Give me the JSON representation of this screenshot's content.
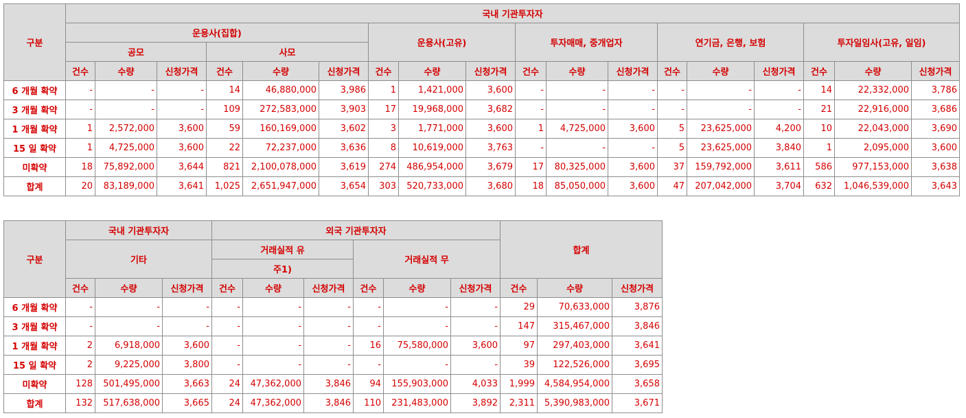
{
  "tables": [
    {
      "headers": [
        "구분",
        "국내 기관투자자",
        "운용사(집합)",
        "운용사(고유)",
        "투자매매, 중개업자",
        "연기금, 은행, 보험",
        "투자일임사(고유, 일임)",
        "공모",
        "사모"
      ],
      "columns": [
        "건수",
        "수량",
        "신청가격",
        "건수",
        "수량",
        "신청가격",
        "건수",
        "수량",
        "신청가격",
        "건수",
        "수량",
        "신청가격",
        "건수",
        "수량",
        "신청가격",
        "건수",
        "수량",
        "신청가격"
      ],
      "rows": [
        {
          "label": "6 개월 확약",
          "cells": [
            "-",
            "-",
            "-",
            "14",
            "46,880,000",
            "3,986",
            "1",
            "1,421,000",
            "3,600",
            "-",
            "-",
            "-",
            "-",
            "-",
            "-",
            "14",
            "22,332,000",
            "3,786"
          ]
        },
        {
          "label": "3 개월 확약",
          "cells": [
            "-",
            "-",
            "-",
            "109",
            "272,583,000",
            "3,903",
            "17",
            "19,968,000",
            "3,682",
            "-",
            "-",
            "-",
            "-",
            "-",
            "-",
            "21",
            "22,916,000",
            "3,686"
          ]
        },
        {
          "label": "1 개월 확약",
          "cells": [
            "1",
            "2,572,000",
            "3,600",
            "59",
            "160,169,000",
            "3,602",
            "3",
            "1,771,000",
            "3,600",
            "1",
            "4,725,000",
            "3,600",
            "5",
            "23,625,000",
            "4,200",
            "10",
            "22,043,000",
            "3,690"
          ]
        },
        {
          "label": "15 일 확약",
          "cells": [
            "1",
            "4,725,000",
            "3,600",
            "22",
            "72,237,000",
            "3,636",
            "8",
            "10,619,000",
            "3,763",
            "-",
            "-",
            "-",
            "5",
            "23,625,000",
            "3,840",
            "1",
            "2,095,000",
            "3,600"
          ]
        },
        {
          "label": "미확약",
          "cells": [
            "18",
            "75,892,000",
            "3,644",
            "821",
            "2,100,078,000",
            "3,619",
            "274",
            "486,954,000",
            "3,679",
            "17",
            "80,325,000",
            "3,600",
            "37",
            "159,792,000",
            "3,611",
            "586",
            "977,153,000",
            "3,638"
          ]
        },
        {
          "label": "합계",
          "cells": [
            "20",
            "83,189,000",
            "3,641",
            "1,025",
            "2,651,947,000",
            "3,654",
            "303",
            "520,733,000",
            "3,680",
            "18",
            "85,050,000",
            "3,600",
            "47",
            "207,042,000",
            "3,704",
            "632",
            "1,046,539,000",
            "3,643"
          ]
        }
      ]
    },
    {
      "headers": [
        "구분",
        "국내 기관투자자",
        "외국 기관투자자",
        "합계",
        "기타",
        "거래실적 유",
        "거래실적 무",
        "주1)"
      ],
      "columns": [
        "건수",
        "수량",
        "신청가격",
        "건수",
        "수량",
        "신청가격",
        "건수",
        "수량",
        "신청가격",
        "건수",
        "수량",
        "신청가격"
      ],
      "rows": [
        {
          "label": "6 개월 확약",
          "cells": [
            "-",
            "-",
            "-",
            "-",
            "-",
            "-",
            "-",
            "-",
            "-",
            "29",
            "70,633,000",
            "3,876"
          ]
        },
        {
          "label": "3 개월 확약",
          "cells": [
            "-",
            "-",
            "-",
            "-",
            "-",
            "-",
            "-",
            "-",
            "-",
            "147",
            "315,467,000",
            "3,846"
          ]
        },
        {
          "label": "1 개월 확약",
          "cells": [
            "2",
            "6,918,000",
            "3,600",
            "-",
            "-",
            "-",
            "16",
            "75,580,000",
            "3,600",
            "97",
            "297,403,000",
            "3,641"
          ]
        },
        {
          "label": "15 일 확약",
          "cells": [
            "2",
            "9,225,000",
            "3,800",
            "-",
            "-",
            "-",
            "-",
            "-",
            "-",
            "39",
            "122,526,000",
            "3,695"
          ]
        },
        {
          "label": "미확약",
          "cells": [
            "128",
            "501,495,000",
            "3,663",
            "24",
            "47,362,000",
            "3,846",
            "94",
            "155,903,000",
            "4,033",
            "1,999",
            "4,584,954,000",
            "3,658"
          ]
        },
        {
          "label": "합계",
          "cells": [
            "132",
            "517,638,000",
            "3,665",
            "24",
            "47,362,000",
            "3,846",
            "110",
            "231,483,000",
            "3,892",
            "2,311",
            "5,390,983,000",
            "3,671"
          ]
        }
      ]
    }
  ]
}
